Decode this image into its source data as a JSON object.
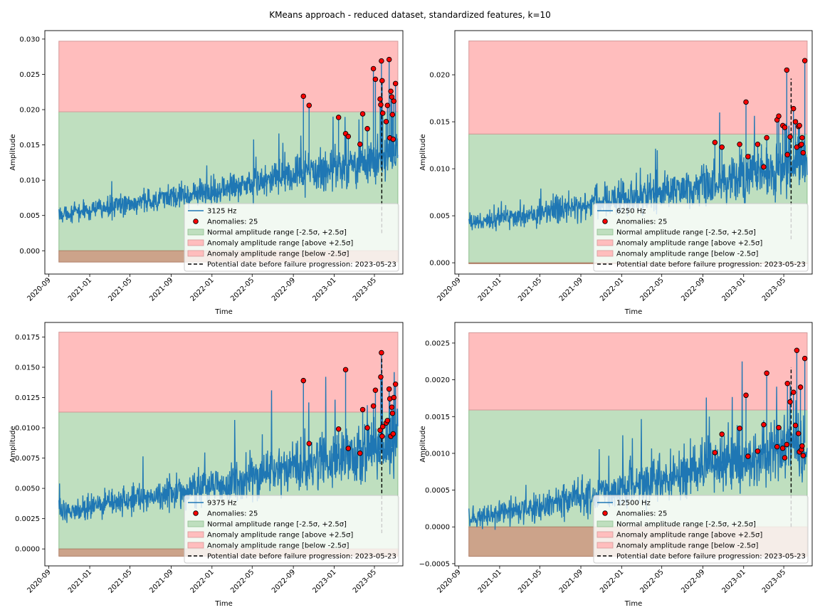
{
  "figure": {
    "suptitle": "KMeans approach - reduced dataset, standardized features, k=10"
  },
  "colors": {
    "signal": "#1f77b4",
    "normal_fill": "#bfdfbf",
    "normal_edge": "#8fbf8f",
    "above_fill": "#ffbdbd",
    "above_edge": "#d49a9a",
    "below_fill": "#cca38a",
    "below_edge": "#b0806a",
    "anomaly_marker": "#ff0000",
    "failure_line": "#000000"
  },
  "chart_data": [
    {
      "type": "line",
      "xlabel": "Time",
      "ylabel": "Amplitude",
      "x_ticks": [
        "2020-09",
        "2021-01",
        "2021-05",
        "2021-09",
        "2022-01",
        "2022-05",
        "2022-09",
        "2023-01",
        "2023-05"
      ],
      "x_range": [
        "2020-08-20",
        "2023-07-25"
      ],
      "y_range": [
        -0.0033,
        0.0312
      ],
      "y_ticks": [
        0.0,
        0.005,
        0.01,
        0.015,
        0.02,
        0.025,
        0.03
      ],
      "y_tick_labels": [
        "0.000",
        "0.005",
        "0.010",
        "0.015",
        "0.020",
        "0.025",
        "0.030"
      ],
      "series_start": "2020-10-01",
      "series_end": "2023-07-10",
      "trend": {
        "start": 0.0052,
        "end": 0.0135
      },
      "noise": 0.0009,
      "normal_range": [
        0.0,
        0.0197
      ],
      "above_range": [
        0.0197,
        0.0297
      ],
      "below_range": [
        -0.0016,
        0.0
      ],
      "failure_date": "2023-05-23",
      "failure_line_y": [
        0.0025,
        0.0237
      ],
      "anomalies": {
        "x": [
          "2022-10-01",
          "2022-10-18",
          "2023-01-14",
          "2023-02-04",
          "2023-02-12",
          "2023-03-19",
          "2023-03-27",
          "2023-04-10",
          "2023-04-28",
          "2023-05-04",
          "2023-05-18",
          "2023-05-20",
          "2023-05-22",
          "2023-05-24",
          "2023-05-26",
          "2023-06-05",
          "2023-06-09",
          "2023-06-14",
          "2023-06-16",
          "2023-06-19",
          "2023-06-22",
          "2023-06-24",
          "2023-06-26",
          "2023-06-28",
          "2023-07-03"
        ],
        "y": [
          0.0219,
          0.0206,
          0.0189,
          0.0166,
          0.0162,
          0.0151,
          0.0194,
          0.0173,
          0.0258,
          0.0243,
          0.0215,
          0.0207,
          0.0269,
          0.0241,
          0.0195,
          0.0183,
          0.0206,
          0.0271,
          0.016,
          0.0226,
          0.0218,
          0.0193,
          0.0158,
          0.0212,
          0.0237
        ]
      },
      "legend": {
        "location": "lower right",
        "entries": [
          {
            "kind": "line",
            "label": "3125 Hz"
          },
          {
            "kind": "marker",
            "label": "Anomalies: 25"
          },
          {
            "kind": "normal",
            "label": "Normal amplitude range [-2.5σ, +2.5σ]"
          },
          {
            "kind": "above",
            "label": "Anomaly amplitude range [above +2.5σ]"
          },
          {
            "kind": "below",
            "label": "Anomaly amplitude range [below -2.5σ]"
          },
          {
            "kind": "dashed",
            "label": "Potential date before failure progression: 2023-05-23"
          }
        ]
      }
    },
    {
      "type": "line",
      "xlabel": "Time",
      "ylabel": "Amplitude",
      "x_ticks": [
        "2020-09",
        "2021-01",
        "2021-05",
        "2021-09",
        "2022-01",
        "2022-05",
        "2022-09",
        "2023-01",
        "2023-05"
      ],
      "x_range": [
        "2020-08-20",
        "2023-07-25"
      ],
      "y_range": [
        -0.0012,
        0.0247
      ],
      "y_ticks": [
        0.0,
        0.005,
        0.01,
        0.015,
        0.02
      ],
      "y_tick_labels": [
        "0.000",
        "0.005",
        "0.010",
        "0.015",
        "0.020"
      ],
      "series_start": "2020-10-01",
      "series_end": "2023-07-10",
      "trend": {
        "start": 0.0043,
        "end": 0.0105
      },
      "noise": 0.0008,
      "normal_range": [
        0.0,
        0.0137
      ],
      "above_range": [
        0.0137,
        0.0236
      ],
      "below_range": [
        -0.0001,
        0.0
      ],
      "failure_date": "2023-05-23",
      "failure_line_y": [
        0.0025,
        0.0196
      ],
      "anomalies": {
        "x": [
          "2022-10-07",
          "2022-10-28",
          "2022-12-20",
          "2023-01-08",
          "2023-01-14",
          "2023-02-12",
          "2023-03-02",
          "2023-03-11",
          "2023-04-11",
          "2023-04-16",
          "2023-04-28",
          "2023-05-04",
          "2023-05-10",
          "2023-05-12",
          "2023-05-20",
          "2023-05-30",
          "2023-06-05",
          "2023-06-09",
          "2023-06-14",
          "2023-06-17",
          "2023-06-20",
          "2023-06-23",
          "2023-06-25",
          "2023-06-28",
          "2023-07-03"
        ],
        "y": [
          0.0128,
          0.0123,
          0.0126,
          0.0171,
          0.0113,
          0.0126,
          0.0102,
          0.0133,
          0.0152,
          0.0156,
          0.0146,
          0.0144,
          0.0205,
          0.0115,
          0.0134,
          0.0164,
          0.015,
          0.0123,
          0.0145,
          0.0146,
          0.0125,
          0.0126,
          0.0133,
          0.0117,
          0.0215
        ]
      },
      "legend": {
        "location": "lower right",
        "entries": [
          {
            "kind": "line",
            "label": "6250 Hz"
          },
          {
            "kind": "marker",
            "label": "Anomalies: 25"
          },
          {
            "kind": "normal",
            "label": "Normal amplitude range [-2.5σ, +2.5σ]"
          },
          {
            "kind": "above",
            "label": "Anomaly amplitude range [above +2.5σ]"
          },
          {
            "kind": "below",
            "label": "Anomaly amplitude range [below -2.5σ]"
          },
          {
            "kind": "dashed",
            "label": "Potential date before failure progression: 2023-05-23"
          }
        ]
      }
    },
    {
      "type": "line",
      "xlabel": "Time",
      "ylabel": "Amplitude",
      "x_ticks": [
        "2020-09",
        "2021-01",
        "2021-05",
        "2021-09",
        "2022-01",
        "2022-05",
        "2022-09",
        "2023-01",
        "2023-05"
      ],
      "x_range": [
        "2020-08-20",
        "2023-07-25"
      ],
      "y_range": [
        -0.0014,
        0.0187
      ],
      "y_ticks": [
        0.0,
        0.0025,
        0.005,
        0.0075,
        0.01,
        0.0125,
        0.015,
        0.0175
      ],
      "y_tick_labels": [
        "0.0000",
        "0.0025",
        "0.0050",
        "0.0075",
        "0.0100",
        "0.0125",
        "0.0150",
        "0.0175"
      ],
      "series_start": "2020-10-01",
      "series_end": "2023-07-10",
      "trend": {
        "start": 0.0031,
        "end": 0.0085
      },
      "noise": 0.0007,
      "normal_range": [
        0.0,
        0.0113
      ],
      "above_range": [
        0.0113,
        0.0179
      ],
      "below_range": [
        -0.0006,
        0.0
      ],
      "failure_date": "2023-05-23",
      "failure_line_y": [
        0.0013,
        0.0158
      ],
      "anomalies": {
        "x": [
          "2022-10-01",
          "2022-10-18",
          "2023-01-14",
          "2023-02-04",
          "2023-02-12",
          "2023-03-19",
          "2023-03-27",
          "2023-04-10",
          "2023-04-28",
          "2023-05-04",
          "2023-05-18",
          "2023-05-20",
          "2023-05-22",
          "2023-05-24",
          "2023-05-26",
          "2023-06-05",
          "2023-06-09",
          "2023-06-14",
          "2023-06-16",
          "2023-06-19",
          "2023-06-22",
          "2023-06-24",
          "2023-06-26",
          "2023-06-28",
          "2023-07-03"
        ],
        "y": [
          0.0139,
          0.0087,
          0.0099,
          0.0148,
          0.0083,
          0.0079,
          0.0115,
          0.01,
          0.0118,
          0.0131,
          0.0098,
          0.0142,
          0.0162,
          0.0093,
          0.0101,
          0.0104,
          0.0106,
          0.0132,
          0.0124,
          0.0093,
          0.0117,
          0.0112,
          0.0095,
          0.0125,
          0.0136
        ]
      },
      "legend": {
        "location": "lower right",
        "entries": [
          {
            "kind": "line",
            "label": "9375 Hz"
          },
          {
            "kind": "marker",
            "label": "Anomalies: 25"
          },
          {
            "kind": "normal",
            "label": "Normal amplitude range [-2.5σ, +2.5σ]"
          },
          {
            "kind": "above",
            "label": "Anomaly amplitude range [above +2.5σ]"
          },
          {
            "kind": "below",
            "label": "Anomaly amplitude range [below -2.5σ]"
          },
          {
            "kind": "dashed",
            "label": "Potential date before failure progression: 2023-05-23"
          }
        ]
      }
    },
    {
      "type": "line",
      "xlabel": "Time",
      "ylabel": "Amplitude",
      "x_ticks": [
        "2020-09",
        "2021-01",
        "2021-05",
        "2021-09",
        "2022-01",
        "2022-05",
        "2022-09",
        "2023-01",
        "2023-05"
      ],
      "x_range": [
        "2020-08-20",
        "2023-07-25"
      ],
      "y_range": [
        -0.00053,
        0.00278
      ],
      "y_ticks": [
        -0.0005,
        0.0,
        0.0005,
        0.001,
        0.0015,
        0.002,
        0.0025
      ],
      "y_tick_labels": [
        "−0.0005",
        "0.0000",
        "0.0005",
        "0.0010",
        "0.0015",
        "0.0020",
        "0.0025"
      ],
      "series_start": "2020-10-01",
      "series_end": "2023-07-10",
      "trend": {
        "start": 0.00012,
        "end": 0.00115
      },
      "noise": 0.00013,
      "normal_range": [
        0.0,
        0.00159
      ],
      "above_range": [
        0.00159,
        0.00264
      ],
      "below_range": [
        -0.0004,
        0.0
      ],
      "failure_date": "2023-05-23",
      "failure_line_y": [
        0.0,
        0.00217
      ],
      "anomalies": {
        "x": [
          "2022-10-07",
          "2022-10-28",
          "2022-12-20",
          "2023-01-08",
          "2023-01-14",
          "2023-02-12",
          "2023-03-02",
          "2023-03-11",
          "2023-04-11",
          "2023-04-16",
          "2023-04-28",
          "2023-05-04",
          "2023-05-10",
          "2023-05-12",
          "2023-05-20",
          "2023-05-30",
          "2023-06-05",
          "2023-06-09",
          "2023-06-14",
          "2023-06-17",
          "2023-06-20",
          "2023-06-23",
          "2023-06-25",
          "2023-06-28",
          "2023-07-03"
        ],
        "y": [
          0.00101,
          0.00126,
          0.00134,
          0.00179,
          0.00096,
          0.00103,
          0.00139,
          0.00209,
          0.00109,
          0.00135,
          0.00107,
          0.00094,
          0.00112,
          0.00195,
          0.0017,
          0.00183,
          0.00138,
          0.0024,
          0.00127,
          0.00102,
          0.0019,
          0.00105,
          0.0011,
          0.00097,
          0.00229
        ]
      },
      "legend": {
        "location": "lower right",
        "entries": [
          {
            "kind": "line",
            "label": "12500 Hz"
          },
          {
            "kind": "marker",
            "label": "Anomalies: 25"
          },
          {
            "kind": "normal",
            "label": "Normal amplitude range [-2.5σ, +2.5σ]"
          },
          {
            "kind": "above",
            "label": "Anomaly amplitude range [above +2.5σ]"
          },
          {
            "kind": "below",
            "label": "Anomaly amplitude range [below -2.5σ]"
          },
          {
            "kind": "dashed",
            "label": "Potential date before failure progression: 2023-05-23"
          }
        ]
      }
    }
  ]
}
